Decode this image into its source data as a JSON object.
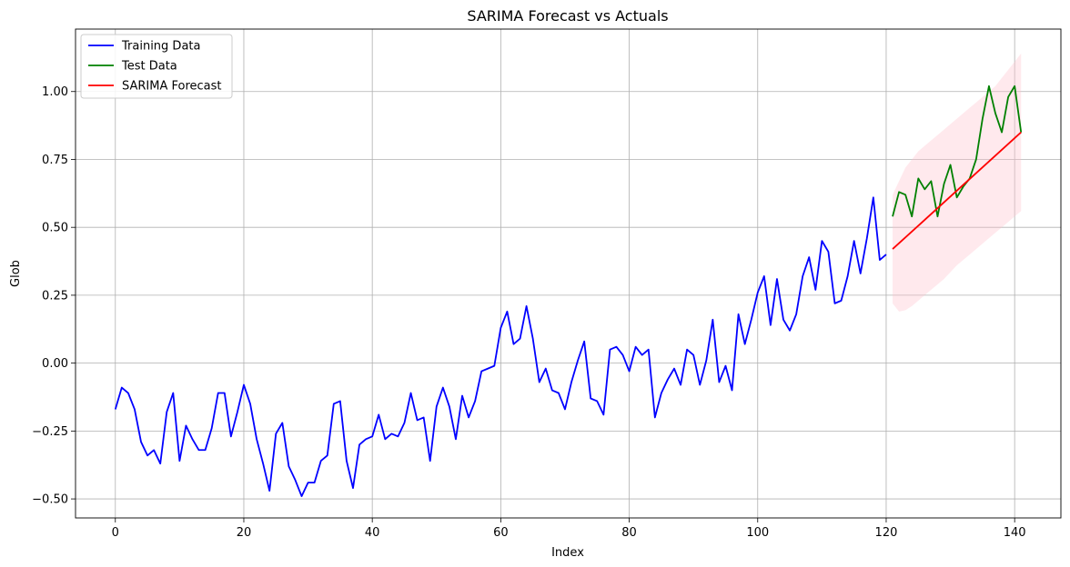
{
  "chart_data": {
    "type": "line",
    "title": "SARIMA Forecast vs Actuals",
    "xlabel": "Index",
    "ylabel": "Glob",
    "xlim": [
      -6.2,
      147.2
    ],
    "ylim": [
      -0.57,
      1.23
    ],
    "xticks": [
      0,
      20,
      40,
      60,
      80,
      100,
      120,
      140
    ],
    "xtick_labels": [
      "0",
      "20",
      "40",
      "60",
      "80",
      "100",
      "120",
      "140"
    ],
    "yticks": [
      -0.5,
      -0.25,
      0.0,
      0.25,
      0.5,
      0.75,
      1.0
    ],
    "ytick_labels": [
      "−0.50",
      "−0.25",
      "0.00",
      "0.25",
      "0.50",
      "0.75",
      "1.00"
    ],
    "grid": true,
    "legend_position": "top-left",
    "series": [
      {
        "name": "Training Data",
        "color": "#0000ff",
        "x_start": 0,
        "values": [
          -0.17,
          -0.09,
          -0.11,
          -0.17,
          -0.29,
          -0.34,
          -0.32,
          -0.37,
          -0.18,
          -0.11,
          -0.36,
          -0.23,
          -0.28,
          -0.32,
          -0.32,
          -0.24,
          -0.11,
          -0.11,
          -0.27,
          -0.18,
          -0.08,
          -0.15,
          -0.28,
          -0.37,
          -0.47,
          -0.26,
          -0.22,
          -0.38,
          -0.43,
          -0.49,
          -0.44,
          -0.44,
          -0.36,
          -0.34,
          -0.15,
          -0.14,
          -0.36,
          -0.46,
          -0.3,
          -0.28,
          -0.27,
          -0.19,
          -0.28,
          -0.26,
          -0.27,
          -0.22,
          -0.11,
          -0.21,
          -0.2,
          -0.36,
          -0.16,
          -0.09,
          -0.16,
          -0.28,
          -0.12,
          -0.2,
          -0.14,
          -0.03,
          -0.02,
          -0.01,
          0.13,
          0.19,
          0.07,
          0.09,
          0.21,
          0.09,
          -0.07,
          -0.02,
          -0.1,
          -0.11,
          -0.17,
          -0.07,
          0.01,
          0.08,
          -0.13,
          -0.14,
          -0.19,
          0.05,
          0.06,
          0.03,
          -0.03,
          0.06,
          0.03,
          0.05,
          -0.2,
          -0.11,
          -0.06,
          -0.02,
          -0.08,
          0.05,
          0.03,
          -0.08,
          0.01,
          0.16,
          -0.07,
          -0.01,
          -0.1,
          0.18,
          0.07,
          0.16,
          0.26,
          0.32,
          0.14,
          0.31,
          0.16,
          0.12,
          0.18,
          0.32,
          0.39,
          0.27,
          0.45,
          0.41,
          0.22,
          0.23,
          0.32,
          0.45,
          0.33,
          0.46,
          0.61,
          0.38,
          0.4
        ]
      },
      {
        "name": "Test Data",
        "color": "#008000",
        "x_start": 121,
        "values": [
          0.54,
          0.63,
          0.62,
          0.54,
          0.68,
          0.64,
          0.67,
          0.54,
          0.66,
          0.73,
          0.61,
          0.65,
          0.68,
          0.75,
          0.9,
          1.02,
          0.92,
          0.85,
          0.98,
          1.02,
          0.85
        ]
      },
      {
        "name": "SARIMA Forecast",
        "color": "#ff0000",
        "x": [
          121,
          141
        ],
        "values": [
          0.42,
          0.85
        ]
      }
    ],
    "confidence_band": {
      "color": "#ffc0cb",
      "x": [
        121,
        122,
        123,
        124,
        125,
        126,
        127,
        128,
        129,
        130,
        131,
        132,
        133,
        134,
        135,
        136,
        137,
        138,
        139,
        140,
        141
      ],
      "lower": [
        0.22,
        0.19,
        0.195,
        0.21,
        0.23,
        0.25,
        0.27,
        0.29,
        0.31,
        0.335,
        0.36,
        0.38,
        0.4,
        0.42,
        0.44,
        0.46,
        0.48,
        0.5,
        0.52,
        0.54,
        0.56
      ],
      "upper": [
        0.62,
        0.67,
        0.72,
        0.75,
        0.78,
        0.8,
        0.82,
        0.84,
        0.86,
        0.88,
        0.9,
        0.92,
        0.94,
        0.96,
        0.98,
        1.0,
        1.02,
        1.05,
        1.08,
        1.11,
        1.14
      ]
    }
  }
}
